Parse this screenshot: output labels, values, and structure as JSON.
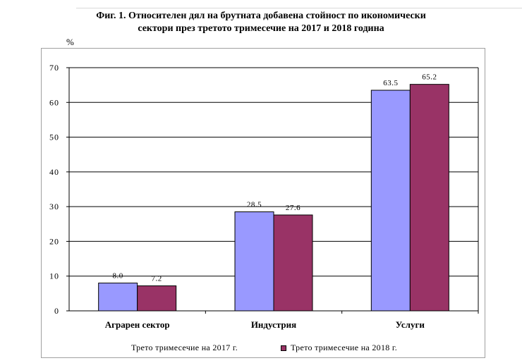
{
  "title_lines": [
    "Фиг. 1. Относителен дял на брутната добавена стойност по икономически",
    "сектори през третото тримесечие на 2017 и 2018 година"
  ],
  "chart_data": {
    "type": "bar",
    "title": "Фиг. 1. Относителен дял на брутната добавена стойност по икономически сектори през третото тримесечие на 2017 и 2018 година",
    "ylabel": "%",
    "xlabel": "",
    "ylim": [
      0,
      70
    ],
    "yticks": [
      0,
      10,
      20,
      30,
      40,
      50,
      60,
      70
    ],
    "grid": true,
    "legend_position": "bottom",
    "categories": [
      "Аграрен сектор",
      "Индустрия",
      "Услуги"
    ],
    "series": [
      {
        "name": "Трето тримесечие на 2017 г.",
        "color": "#9999ff",
        "values": [
          8.0,
          28.5,
          63.5
        ],
        "labels": [
          "8.0",
          "28.5",
          "63.5"
        ]
      },
      {
        "name": "Трето тримесечие на 2018 г.",
        "color": "#993366",
        "values": [
          7.2,
          27.6,
          65.2
        ],
        "labels": [
          "7.2",
          "27.6",
          "65.2"
        ]
      }
    ]
  }
}
